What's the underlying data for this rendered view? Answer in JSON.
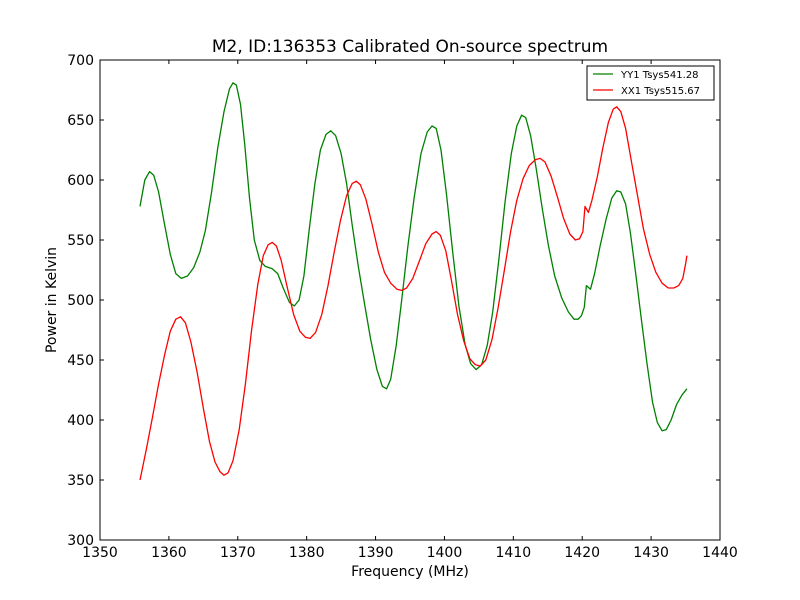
{
  "chart_data": {
    "type": "line",
    "title": "M2, ID:136353 Calibrated On-source spectrum",
    "xlabel": "Frequency (MHz)",
    "ylabel": "Power in Kelvin",
    "xlim": [
      1350,
      1440
    ],
    "ylim": [
      300,
      700
    ],
    "xticks": [
      1350,
      1360,
      1370,
      1380,
      1390,
      1400,
      1410,
      1420,
      1430,
      1440
    ],
    "yticks": [
      300,
      350,
      400,
      450,
      500,
      550,
      600,
      650,
      700
    ],
    "xtick_labels": [
      "1350",
      "1360",
      "1370",
      "1380",
      "1390",
      "1400",
      "1410",
      "1420",
      "1430",
      "1440"
    ],
    "ytick_labels": [
      "300",
      "350",
      "400",
      "450",
      "500",
      "550",
      "600",
      "650",
      "700"
    ],
    "grid": false,
    "legend_position": "top-right",
    "series": [
      {
        "name": "YY1 Tsys541.28",
        "color": "#008000",
        "points": [
          [
            1355.8,
            578
          ],
          [
            1356.5,
            600
          ],
          [
            1357.2,
            607
          ],
          [
            1357.8,
            604
          ],
          [
            1358.5,
            590
          ],
          [
            1359.3,
            565
          ],
          [
            1360.2,
            538
          ],
          [
            1361.0,
            522
          ],
          [
            1361.8,
            518
          ],
          [
            1362.7,
            520
          ],
          [
            1363.6,
            527
          ],
          [
            1364.5,
            540
          ],
          [
            1365.3,
            558
          ],
          [
            1366.2,
            590
          ],
          [
            1367.1,
            627
          ],
          [
            1368.0,
            657
          ],
          [
            1368.8,
            676
          ],
          [
            1369.3,
            681
          ],
          [
            1369.8,
            679
          ],
          [
            1370.4,
            663
          ],
          [
            1371.0,
            630
          ],
          [
            1371.7,
            585
          ],
          [
            1372.4,
            550
          ],
          [
            1373.2,
            533
          ],
          [
            1374.0,
            528
          ],
          [
            1375.0,
            526
          ],
          [
            1375.8,
            522
          ],
          [
            1376.6,
            510
          ],
          [
            1377.5,
            498
          ],
          [
            1378.2,
            495
          ],
          [
            1378.9,
            500
          ],
          [
            1379.6,
            520
          ],
          [
            1380.4,
            560
          ],
          [
            1381.2,
            597
          ],
          [
            1382.0,
            625
          ],
          [
            1382.8,
            638
          ],
          [
            1383.5,
            641
          ],
          [
            1384.2,
            637
          ],
          [
            1385.0,
            622
          ],
          [
            1385.8,
            597
          ],
          [
            1386.6,
            563
          ],
          [
            1387.5,
            528
          ],
          [
            1388.4,
            497
          ],
          [
            1389.3,
            467
          ],
          [
            1390.2,
            442
          ],
          [
            1391.0,
            428
          ],
          [
            1391.6,
            426
          ],
          [
            1392.2,
            434
          ],
          [
            1393.0,
            462
          ],
          [
            1393.8,
            500
          ],
          [
            1394.7,
            545
          ],
          [
            1395.6,
            585
          ],
          [
            1396.6,
            622
          ],
          [
            1397.5,
            640
          ],
          [
            1398.2,
            645
          ],
          [
            1398.8,
            643
          ],
          [
            1399.5,
            625
          ],
          [
            1400.3,
            588
          ],
          [
            1401.2,
            540
          ],
          [
            1402.1,
            495
          ],
          [
            1403.0,
            463
          ],
          [
            1403.8,
            447
          ],
          [
            1404.6,
            442
          ],
          [
            1405.4,
            446
          ],
          [
            1406.2,
            462
          ],
          [
            1407.0,
            490
          ],
          [
            1407.9,
            534
          ],
          [
            1408.8,
            582
          ],
          [
            1409.7,
            622
          ],
          [
            1410.5,
            645
          ],
          [
            1411.2,
            654
          ],
          [
            1411.8,
            652
          ],
          [
            1412.5,
            637
          ],
          [
            1413.3,
            610
          ],
          [
            1414.2,
            576
          ],
          [
            1415.1,
            545
          ],
          [
            1416.0,
            520
          ],
          [
            1417.0,
            502
          ],
          [
            1418.0,
            490
          ],
          [
            1418.8,
            484
          ],
          [
            1419.4,
            484
          ],
          [
            1419.9,
            487
          ],
          [
            1420.3,
            494
          ],
          [
            1420.6,
            512
          ],
          [
            1421.2,
            509
          ],
          [
            1421.8,
            522
          ],
          [
            1422.6,
            545
          ],
          [
            1423.5,
            568
          ],
          [
            1424.3,
            585
          ],
          [
            1425.0,
            591
          ],
          [
            1425.6,
            590
          ],
          [
            1426.3,
            580
          ],
          [
            1427.0,
            556
          ],
          [
            1427.8,
            520
          ],
          [
            1428.6,
            483
          ],
          [
            1429.4,
            447
          ],
          [
            1430.2,
            415
          ],
          [
            1430.9,
            398
          ],
          [
            1431.6,
            391
          ],
          [
            1432.2,
            392
          ],
          [
            1432.9,
            400
          ],
          [
            1433.7,
            413
          ],
          [
            1434.5,
            421
          ],
          [
            1435.2,
            426
          ]
        ]
      },
      {
        "name": "XX1 Tsys515.67",
        "color": "#ff0000",
        "points": [
          [
            1355.8,
            350
          ],
          [
            1356.7,
            375
          ],
          [
            1357.6,
            402
          ],
          [
            1358.5,
            430
          ],
          [
            1359.4,
            455
          ],
          [
            1360.2,
            474
          ],
          [
            1361.0,
            484
          ],
          [
            1361.7,
            486
          ],
          [
            1362.4,
            481
          ],
          [
            1363.2,
            465
          ],
          [
            1364.1,
            440
          ],
          [
            1365.0,
            410
          ],
          [
            1365.9,
            382
          ],
          [
            1366.7,
            365
          ],
          [
            1367.4,
            357
          ],
          [
            1368.0,
            354
          ],
          [
            1368.6,
            356
          ],
          [
            1369.3,
            366
          ],
          [
            1370.2,
            392
          ],
          [
            1371.1,
            430
          ],
          [
            1372.0,
            475
          ],
          [
            1372.9,
            513
          ],
          [
            1373.7,
            537
          ],
          [
            1374.4,
            546
          ],
          [
            1375.0,
            548
          ],
          [
            1375.6,
            545
          ],
          [
            1376.3,
            533
          ],
          [
            1377.2,
            510
          ],
          [
            1378.1,
            488
          ],
          [
            1379.0,
            474
          ],
          [
            1379.8,
            469
          ],
          [
            1380.5,
            468
          ],
          [
            1381.3,
            473
          ],
          [
            1382.2,
            488
          ],
          [
            1383.1,
            512
          ],
          [
            1384.0,
            540
          ],
          [
            1384.9,
            566
          ],
          [
            1385.8,
            587
          ],
          [
            1386.6,
            597
          ],
          [
            1387.2,
            599
          ],
          [
            1387.8,
            596
          ],
          [
            1388.6,
            584
          ],
          [
            1389.5,
            563
          ],
          [
            1390.4,
            540
          ],
          [
            1391.3,
            523
          ],
          [
            1392.2,
            514
          ],
          [
            1393.1,
            509
          ],
          [
            1393.8,
            508
          ],
          [
            1394.5,
            510
          ],
          [
            1395.4,
            518
          ],
          [
            1396.4,
            533
          ],
          [
            1397.3,
            547
          ],
          [
            1398.2,
            555
          ],
          [
            1398.8,
            557
          ],
          [
            1399.4,
            554
          ],
          [
            1400.2,
            541
          ],
          [
            1401.0,
            517
          ],
          [
            1401.9,
            488
          ],
          [
            1402.8,
            466
          ],
          [
            1403.7,
            451
          ],
          [
            1404.5,
            446
          ],
          [
            1405.2,
            445
          ],
          [
            1406.0,
            450
          ],
          [
            1406.9,
            467
          ],
          [
            1407.8,
            494
          ],
          [
            1408.7,
            525
          ],
          [
            1409.6,
            557
          ],
          [
            1410.5,
            583
          ],
          [
            1411.4,
            601
          ],
          [
            1412.3,
            612
          ],
          [
            1413.2,
            617
          ],
          [
            1413.9,
            618
          ],
          [
            1414.6,
            615
          ],
          [
            1415.5,
            603
          ],
          [
            1416.4,
            586
          ],
          [
            1417.3,
            568
          ],
          [
            1418.2,
            555
          ],
          [
            1419.0,
            550
          ],
          [
            1419.6,
            551
          ],
          [
            1420.1,
            557
          ],
          [
            1420.4,
            578
          ],
          [
            1420.9,
            573
          ],
          [
            1421.4,
            583
          ],
          [
            1422.2,
            603
          ],
          [
            1423.0,
            627
          ],
          [
            1423.8,
            648
          ],
          [
            1424.5,
            659
          ],
          [
            1425.0,
            661
          ],
          [
            1425.6,
            657
          ],
          [
            1426.3,
            643
          ],
          [
            1427.1,
            617
          ],
          [
            1428.0,
            588
          ],
          [
            1428.9,
            559
          ],
          [
            1429.8,
            538
          ],
          [
            1430.7,
            523
          ],
          [
            1431.6,
            514
          ],
          [
            1432.5,
            510
          ],
          [
            1433.3,
            510
          ],
          [
            1434.0,
            512
          ],
          [
            1434.6,
            518
          ],
          [
            1435.0,
            530
          ],
          [
            1435.2,
            537
          ]
        ]
      }
    ]
  }
}
